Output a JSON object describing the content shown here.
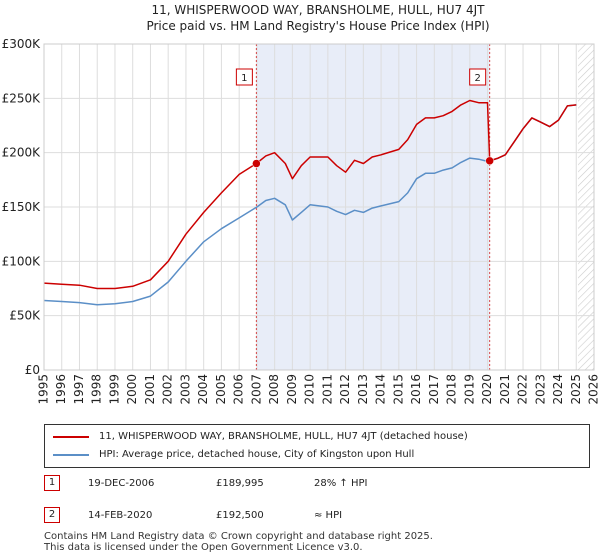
{
  "chart_data": {
    "type": "line",
    "title": "11, WHISPERWOOD WAY, BRANSHOLME, HULL, HU7 4JT",
    "subtitle": "Price paid vs. HM Land Registry's House Price Index (HPI)",
    "xlim": [
      1995,
      2026
    ],
    "ylim": [
      0,
      300000
    ],
    "y_ticks": [
      0,
      50000,
      100000,
      150000,
      200000,
      250000,
      300000
    ],
    "y_tick_labels": [
      "£0",
      "£50K",
      "£100K",
      "£150K",
      "£200K",
      "£250K",
      "£300K"
    ],
    "x_ticks": [
      1995,
      1996,
      1997,
      1998,
      1999,
      2000,
      2001,
      2002,
      2003,
      2004,
      2005,
      2006,
      2007,
      2008,
      2009,
      2010,
      2011,
      2012,
      2013,
      2014,
      2015,
      2016,
      2017,
      2018,
      2019,
      2020,
      2021,
      2022,
      2023,
      2024,
      2025,
      2026
    ],
    "grid": true,
    "shaded_range": [
      2006.97,
      2020.12
    ],
    "hatched_from": 2025.1,
    "series": [
      {
        "name": "11, WHISPERWOOD WAY, BRANSHOLME, HULL, HU7 4JT (detached house)",
        "color": "#cc0000",
        "x": [
          1995,
          1996,
          1997,
          1998,
          1999,
          2000,
          2001,
          2002,
          2003,
          2004,
          2005,
          2006,
          2006.97,
          2007.5,
          2008,
          2008.6,
          2009,
          2009.5,
          2010,
          2011,
          2011.5,
          2012,
          2012.5,
          2013,
          2013.5,
          2014,
          2015,
          2015.5,
          2016,
          2016.5,
          2017,
          2017.5,
          2018,
          2018.5,
          2019,
          2019.5,
          2020.0,
          2020.12,
          2020.6,
          2021,
          2021.5,
          2022,
          2022.5,
          2023,
          2023.5,
          2024,
          2024.5,
          2025
        ],
        "values": [
          80000,
          79000,
          78000,
          75000,
          75000,
          77000,
          83000,
          100000,
          125000,
          145000,
          163000,
          180000,
          189995,
          197000,
          200000,
          190000,
          176000,
          188000,
          196000,
          196000,
          188000,
          182000,
          193000,
          190000,
          196000,
          198000,
          203000,
          212000,
          226000,
          232000,
          232000,
          234000,
          238000,
          244000,
          248000,
          246000,
          246000,
          192500,
          195000,
          198000,
          210000,
          222000,
          232000,
          228000,
          224000,
          230000,
          243000,
          244000
        ]
      },
      {
        "name": "HPI: Average price, detached house, City of Kingston upon Hull",
        "color": "#5b8fc7",
        "x": [
          1995,
          1996,
          1997,
          1998,
          1999,
          2000,
          2001,
          2002,
          2003,
          2004,
          2005,
          2006,
          2007,
          2007.5,
          2008,
          2008.6,
          2009,
          2009.5,
          2010,
          2011,
          2011.5,
          2012,
          2012.5,
          2013,
          2013.5,
          2014,
          2015,
          2015.5,
          2016,
          2016.5,
          2017,
          2017.5,
          2018,
          2018.5,
          2019,
          2019.5,
          2020.0,
          2020.12,
          2020.6,
          2021,
          2021.5,
          2022,
          2022.5,
          2023,
          2023.5,
          2024,
          2024.5,
          2025
        ],
        "values": [
          64000,
          63000,
          62000,
          60000,
          61000,
          63000,
          68000,
          81000,
          100000,
          118000,
          130000,
          140000,
          150000,
          156000,
          158000,
          152000,
          138000,
          145000,
          152000,
          150000,
          146000,
          143000,
          147000,
          145000,
          149000,
          151000,
          155000,
          163000,
          176000,
          181000,
          181000,
          184000,
          186000,
          191000,
          195000,
          194000,
          192000,
          192500,
          195000,
          198000,
          210000,
          222000,
          232000,
          228000,
          224000,
          230000,
          243000,
          244000
        ]
      }
    ],
    "annotations": [
      {
        "label": "1",
        "x": 2006.97,
        "value": 189995
      },
      {
        "label": "2",
        "x": 2020.12,
        "value": 192500
      }
    ]
  },
  "legend": [
    {
      "label": "11, WHISPERWOOD WAY, BRANSHOLME, HULL, HU7 4JT (detached house)",
      "color": "#cc0000"
    },
    {
      "label": "HPI: Average price, detached house, City of Kingston upon Hull",
      "color": "#5b8fc7"
    }
  ],
  "sales": [
    {
      "num": "1",
      "date": "19-DEC-2006",
      "price": "£189,995",
      "rel": "28% ↑ HPI"
    },
    {
      "num": "2",
      "date": "14-FEB-2020",
      "price": "£192,500",
      "rel": "≈ HPI"
    }
  ],
  "footer": {
    "line1": "Contains HM Land Registry data © Crown copyright and database right 2025.",
    "line2": "This data is licensed under the Open Government Licence v3.0."
  }
}
